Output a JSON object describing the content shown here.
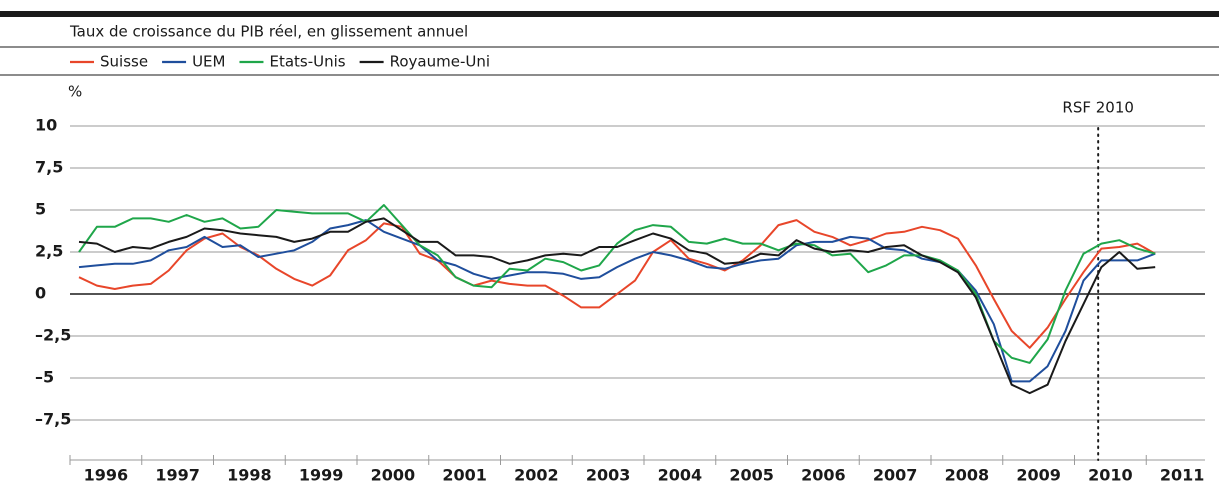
{
  "chart_data": {
    "type": "line",
    "subtitle": "Taux de croissance du PIB réel, en glissement annuel",
    "y_unit": "%",
    "annotation": {
      "text": "RSF 2010",
      "x": 2010.33
    },
    "x": [
      1996.125,
      1996.375,
      1996.625,
      1996.875,
      1997.125,
      1997.375,
      1997.625,
      1997.875,
      1998.125,
      1998.375,
      1998.625,
      1998.875,
      1999.125,
      1999.375,
      1999.625,
      1999.875,
      2000.125,
      2000.375,
      2000.625,
      2000.875,
      2001.125,
      2001.375,
      2001.625,
      2001.875,
      2002.125,
      2002.375,
      2002.625,
      2002.875,
      2003.125,
      2003.375,
      2003.625,
      2003.875,
      2004.125,
      2004.375,
      2004.625,
      2004.875,
      2005.125,
      2005.375,
      2005.625,
      2005.875,
      2006.125,
      2006.375,
      2006.625,
      2006.875,
      2007.125,
      2007.375,
      2007.625,
      2007.875,
      2008.125,
      2008.375,
      2008.625,
      2008.875,
      2009.125,
      2009.375,
      2009.625,
      2009.875,
      2010.125,
      2010.375,
      2010.625,
      2010.875,
      2011.125
    ],
    "xlim": [
      1996,
      2012
    ],
    "xticks": [
      {
        "value": 1996.5,
        "label": "1996"
      },
      {
        "value": 1997.5,
        "label": "1997"
      },
      {
        "value": 1998.5,
        "label": "1998"
      },
      {
        "value": 1999.5,
        "label": "1999"
      },
      {
        "value": 2000.5,
        "label": "2000"
      },
      {
        "value": 2001.5,
        "label": "2001"
      },
      {
        "value": 2002.5,
        "label": "2002"
      },
      {
        "value": 2003.5,
        "label": "2003"
      },
      {
        "value": 2004.5,
        "label": "2004"
      },
      {
        "value": 2005.5,
        "label": "2005"
      },
      {
        "value": 2006.5,
        "label": "2006"
      },
      {
        "value": 2007.5,
        "label": "2007"
      },
      {
        "value": 2008.5,
        "label": "2008"
      },
      {
        "value": 2009.5,
        "label": "2009"
      },
      {
        "value": 2010.5,
        "label": "2010"
      },
      {
        "value": 2011.5,
        "label": "2011"
      }
    ],
    "ylim": [
      -10,
      10
    ],
    "yticks": [
      {
        "value": 10,
        "label": "10"
      },
      {
        "value": 7.5,
        "label": "7,5"
      },
      {
        "value": 5,
        "label": "5"
      },
      {
        "value": 2.5,
        "label": "2,5"
      },
      {
        "value": 0,
        "label": "0"
      },
      {
        "value": -2.5,
        "label": "–2,5"
      },
      {
        "value": -5,
        "label": "–5"
      },
      {
        "value": -7.5,
        "label": "–7,5"
      }
    ],
    "grid": true,
    "series": [
      {
        "name": "Suisse",
        "color": "#e8462a",
        "values": [
          1.0,
          0.5,
          0.3,
          0.5,
          0.6,
          1.4,
          2.6,
          3.3,
          3.6,
          2.8,
          2.3,
          1.5,
          0.9,
          0.5,
          1.1,
          2.6,
          3.2,
          4.2,
          4.0,
          2.4,
          2.0,
          1.0,
          0.5,
          0.8,
          0.6,
          0.5,
          0.5,
          -0.1,
          -0.8,
          -0.8,
          0,
          0.8,
          2.5,
          3.2,
          2.1,
          1.8,
          1.4,
          2.0,
          2.9,
          4.1,
          4.4,
          3.7,
          3.4,
          2.9,
          3.2,
          3.6,
          3.7,
          4.0,
          3.8,
          3.3,
          1.7,
          -0.3,
          -2.2,
          -3.2,
          -2.0,
          -0.3,
          1.3,
          2.7,
          2.8,
          3.0,
          2.4
        ]
      },
      {
        "name": "UEM",
        "color": "#1f4e9c",
        "values": [
          1.6,
          1.7,
          1.8,
          1.8,
          2.0,
          2.6,
          2.8,
          3.4,
          2.8,
          2.9,
          2.2,
          2.4,
          2.6,
          3.1,
          3.9,
          4.1,
          4.4,
          3.7,
          3.3,
          2.9,
          2.0,
          1.7,
          1.2,
          0.9,
          1.1,
          1.3,
          1.3,
          1.2,
          0.9,
          1.0,
          1.6,
          2.1,
          2.5,
          2.3,
          2.0,
          1.6,
          1.5,
          1.8,
          2.0,
          2.1,
          2.9,
          3.1,
          3.1,
          3.4,
          3.3,
          2.7,
          2.6,
          2.1,
          1.9,
          1.4,
          0.2,
          -1.8,
          -5.2,
          -5.2,
          -4.3,
          -2.2,
          0.8,
          2.0,
          2.0,
          2.0,
          2.4
        ]
      },
      {
        "name": "Etats-Unis",
        "color": "#1fa64a",
        "values": [
          2.5,
          4.0,
          4.0,
          4.5,
          4.5,
          4.3,
          4.7,
          4.3,
          4.5,
          3.9,
          4.0,
          5.0,
          4.9,
          4.8,
          4.8,
          4.8,
          4.3,
          5.3,
          4.1,
          2.9,
          2.3,
          1.0,
          0.5,
          0.4,
          1.5,
          1.4,
          2.1,
          1.9,
          1.4,
          1.7,
          3.0,
          3.8,
          4.1,
          4.0,
          3.1,
          3.0,
          3.3,
          3.0,
          3.0,
          2.6,
          3.0,
          2.9,
          2.3,
          2.4,
          1.3,
          1.7,
          2.3,
          2.3,
          2.0,
          1.4,
          0.0,
          -2.8,
          -3.8,
          -4.1,
          -2.7,
          0.2,
          2.4,
          3.0,
          3.2,
          2.7,
          2.4
        ]
      },
      {
        "name": "Royaume-Uni",
        "color": "#1a1a1a",
        "values": [
          3.1,
          3.0,
          2.5,
          2.8,
          2.7,
          3.1,
          3.4,
          3.9,
          3.8,
          3.6,
          3.5,
          3.4,
          3.1,
          3.3,
          3.7,
          3.7,
          4.3,
          4.5,
          3.8,
          3.1,
          3.1,
          2.3,
          2.3,
          2.2,
          1.8,
          2.0,
          2.3,
          2.4,
          2.3,
          2.8,
          2.8,
          3.2,
          3.6,
          3.3,
          2.6,
          2.4,
          1.8,
          1.9,
          2.4,
          2.3,
          3.2,
          2.7,
          2.5,
          2.6,
          2.5,
          2.8,
          2.9,
          2.3,
          1.9,
          1.3,
          -0.2,
          -2.8,
          -5.4,
          -5.9,
          -5.4,
          -2.8,
          -0.6,
          1.6,
          2.5,
          1.5,
          1.6
        ]
      }
    ]
  }
}
